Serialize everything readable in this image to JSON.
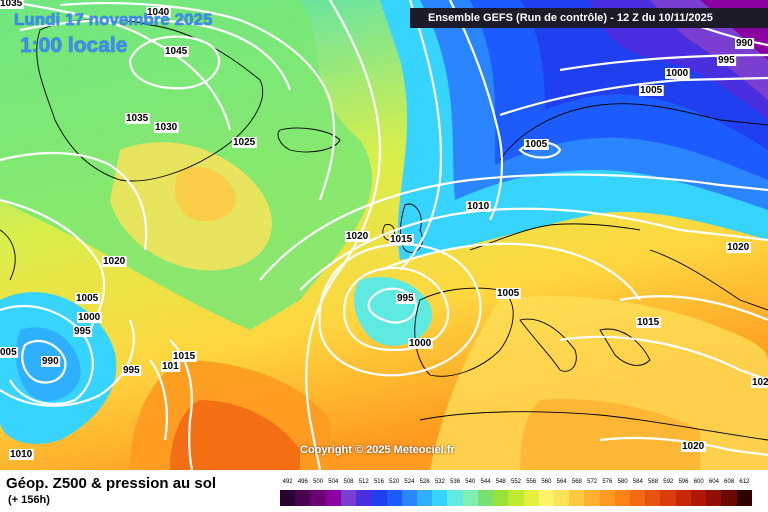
{
  "header": {
    "date": "Lundi 17 novembre 2025",
    "local_time": "1:00 locale",
    "run_info": "Ensemble GEFS  (Run de contrôle)  -  12 Z du 10/11/2025"
  },
  "footer": {
    "product_title": "Géop. Z500 & pression au sol",
    "forecast_hour": "(+ 156h)",
    "copyright": "Copyright © 2025 Meteociel.fr"
  },
  "legend": {
    "values": [
      "492",
      "496",
      "500",
      "504",
      "508",
      "512",
      "516",
      "520",
      "524",
      "528",
      "532",
      "536",
      "540",
      "544",
      "548",
      "552",
      "556",
      "560",
      "564",
      "568",
      "572",
      "576",
      "580",
      "584",
      "588",
      "592",
      "596",
      "600",
      "604",
      "608",
      "612"
    ],
    "colors": [
      "#2a0030",
      "#4a004f",
      "#6b0075",
      "#8a00a0",
      "#7a3fd0",
      "#4a2fe0",
      "#2040f0",
      "#1c5cff",
      "#2a85ff",
      "#2fb0ff",
      "#36d4ff",
      "#5eeae0",
      "#7ef0b0",
      "#78e070",
      "#9ae23a",
      "#c0ea30",
      "#e4f040",
      "#fff36a",
      "#ffe25a",
      "#ffc840",
      "#ffb030",
      "#ff9a20",
      "#ff8418",
      "#f36a12",
      "#e85410",
      "#da3c0c",
      "#c82808",
      "#b01806",
      "#901004",
      "#6c0802",
      "#300000"
    ]
  },
  "isobars": [
    {
      "value": "1035"
    },
    {
      "value": "1040"
    },
    {
      "value": "1045"
    },
    {
      "value": "1035"
    },
    {
      "value": "1030"
    },
    {
      "value": "1025"
    },
    {
      "value": "1020"
    },
    {
      "value": "1005"
    },
    {
      "value": "1000"
    },
    {
      "value": "995"
    },
    {
      "value": "005"
    },
    {
      "value": "990"
    },
    {
      "value": "995"
    },
    {
      "value": "1015"
    },
    {
      "value": "101"
    },
    {
      "value": "1010"
    },
    {
      "value": "1020"
    },
    {
      "value": "1015"
    },
    {
      "value": "995"
    },
    {
      "value": "1000"
    },
    {
      "value": "1010"
    },
    {
      "value": "1005"
    },
    {
      "value": "1005"
    },
    {
      "value": "1005"
    },
    {
      "value": "1000"
    },
    {
      "value": "995"
    },
    {
      "value": "990"
    },
    {
      "value": "1020"
    },
    {
      "value": "1015"
    },
    {
      "value": "102"
    },
    {
      "value": "1020"
    }
  ]
}
